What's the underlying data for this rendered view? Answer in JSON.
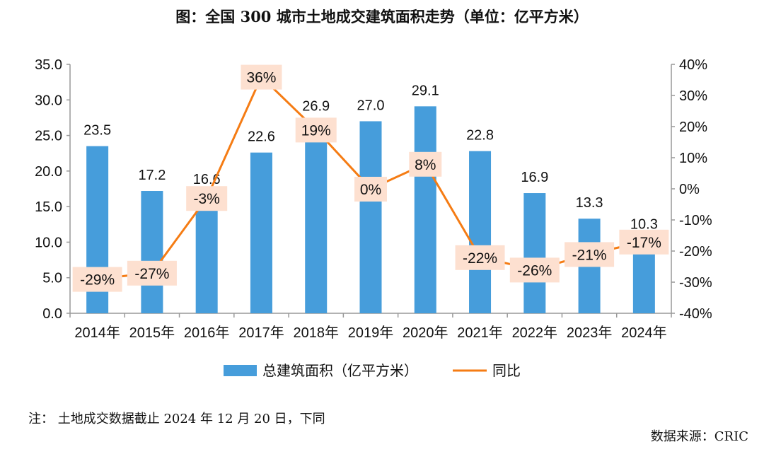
{
  "title": "图：全国 300 城市土地成交建筑面积走势（单位：亿平方米）",
  "note": "注：  土地成交数据截止 2024 年 12 月 20 日，下同",
  "source": "数据来源：CRIC",
  "chart_data": {
    "type": "bar+line",
    "categories": [
      "2014年",
      "2015年",
      "2016年",
      "2017年",
      "2018年",
      "2019年",
      "2020年",
      "2021年",
      "2022年",
      "2023年",
      "2024年"
    ],
    "series": [
      {
        "name": "总建筑面积（亿平方米）",
        "type": "bar",
        "axis": "left",
        "color": "#469ddb",
        "values": [
          23.5,
          17.2,
          16.6,
          22.6,
          26.9,
          27.0,
          29.1,
          22.8,
          16.9,
          13.3,
          10.3
        ],
        "labels": [
          "23.5",
          "17.2",
          "16.6",
          "22.6",
          "26.9",
          "27.0",
          "29.1",
          "22.8",
          "16.9",
          "13.3",
          "10.3"
        ]
      },
      {
        "name": "同比",
        "type": "line",
        "axis": "right",
        "color": "#f57c14",
        "values": [
          -29,
          -27,
          -3,
          36,
          19,
          0,
          8,
          -22,
          -26,
          -21,
          -17
        ],
        "labels": [
          "-29%",
          "-27%",
          "-3%",
          "36%",
          "19%",
          "0%",
          "8%",
          "-22%",
          "-26%",
          "-21%",
          "-17%"
        ]
      }
    ],
    "left_axis": {
      "ylim": [
        0,
        35
      ],
      "ticks": [
        "0.0",
        "5.0",
        "10.0",
        "15.0",
        "20.0",
        "25.0",
        "30.0",
        "35.0"
      ]
    },
    "right_axis": {
      "ylim": [
        -40,
        40
      ],
      "ticks": [
        "-40%",
        "-30%",
        "-20%",
        "-10%",
        "0%",
        "10%",
        "20%",
        "30%",
        "40%"
      ]
    },
    "label_bg": "#fde0d0",
    "grid": false,
    "legend": "bottom"
  }
}
